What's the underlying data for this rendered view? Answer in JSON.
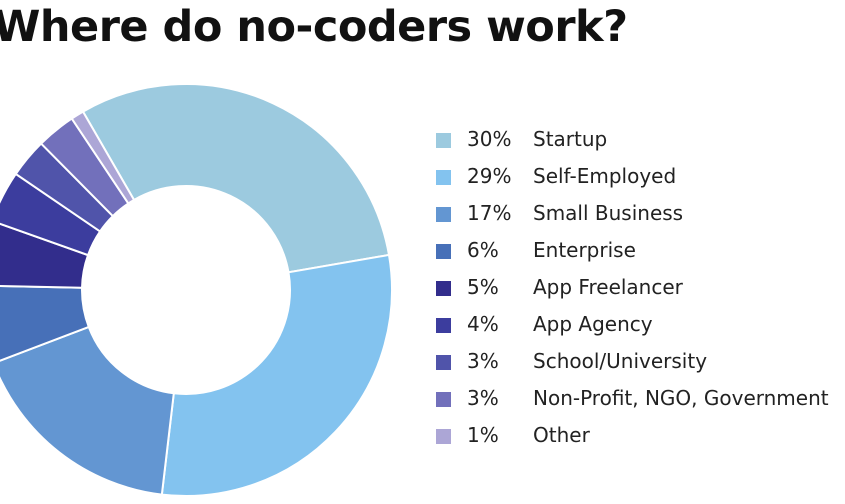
{
  "title": "Where do no-coders work?",
  "chart_data": {
    "type": "pie",
    "title": "Where do no-coders work?",
    "legend_position": "right",
    "series": [
      {
        "label": "Startup",
        "percent_label": "30%",
        "value": 30,
        "color": "#9ccadf"
      },
      {
        "label": "Self-Employed",
        "percent_label": "29%",
        "value": 29,
        "color": "#83c3ef"
      },
      {
        "label": "Small Business",
        "percent_label": "17%",
        "value": 17,
        "color": "#6396d2"
      },
      {
        "label": "Enterprise",
        "percent_label": "6%",
        "value": 6,
        "color": "#4770b8"
      },
      {
        "label": "App Freelancer",
        "percent_label": "5%",
        "value": 5,
        "color": "#322d8c"
      },
      {
        "label": "App Agency",
        "percent_label": "4%",
        "value": 4,
        "color": "#3c3d9e"
      },
      {
        "label": "School/University",
        "percent_label": "3%",
        "value": 3,
        "color": "#5054aa"
      },
      {
        "label": "Non-Profit, NGO, Government",
        "percent_label": "3%",
        "value": 3,
        "color": "#7270bb"
      },
      {
        "label": "Other",
        "percent_label": "1%",
        "value": 1,
        "color": "#aca6d6"
      }
    ]
  }
}
